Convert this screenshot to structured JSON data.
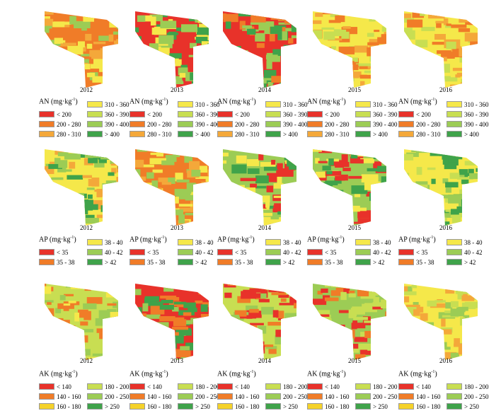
{
  "colors": {
    "red": "#e8322a",
    "orange": "#f07c28",
    "light_orange": "#f4a83a",
    "yellow": "#f5e84a",
    "yellow_green": "#c8de52",
    "light_green": "#9ccc55",
    "green": "#3fa34a",
    "background": "#ffffff"
  },
  "rows": [
    {
      "nutrient": "AN",
      "unit_text": "(mg·kg",
      "unit_exp": "-1",
      "unit_close": ")",
      "years": [
        "2012",
        "2013",
        "2014",
        "2015",
        "2016"
      ],
      "legend_items": [
        {
          "label": "< 200",
          "color": "#e8322a"
        },
        {
          "label": "200 - 280",
          "color": "#f07c28"
        },
        {
          "label": "280 - 310",
          "color": "#f4a83a"
        },
        {
          "label": "310 - 360",
          "color": "#f5e84a"
        },
        {
          "label": "360 - 390",
          "color": "#c8de52"
        },
        {
          "label": "390 - 400",
          "color": "#9ccc55"
        },
        {
          "label": "> 400",
          "color": "#3fa34a"
        }
      ],
      "map_palettes": [
        [
          "#f07c28",
          "#f5e84a",
          "#9ccc55",
          "#f4a83a"
        ],
        [
          "#e8322a",
          "#3fa34a",
          "#f5e84a",
          "#9ccc55"
        ],
        [
          "#e8322a",
          "#3fa34a",
          "#f07c28",
          "#9ccc55"
        ],
        [
          "#f5e84a",
          "#f07c28",
          "#f4a83a",
          "#c8de52"
        ],
        [
          "#f5e84a",
          "#f4a83a",
          "#c8de52",
          "#f07c28"
        ]
      ]
    },
    {
      "nutrient": "AP",
      "unit_text": "(mg·kg",
      "unit_exp": "-1",
      "unit_close": ")",
      "years": [
        "2012",
        "2013",
        "2014",
        "2015",
        "2016"
      ],
      "legend_items": [
        {
          "label": "< 35",
          "color": "#e8322a"
        },
        {
          "label": "35 - 38",
          "color": "#f07c28"
        },
        {
          "label": "38 - 40",
          "color": "#f5e84a"
        },
        {
          "label": "40 - 42",
          "color": "#9ccc55"
        },
        {
          "label": "> 42",
          "color": "#3fa34a"
        }
      ],
      "map_palettes": [
        [
          "#f5e84a",
          "#3fa34a",
          "#9ccc55",
          "#f4a83a"
        ],
        [
          "#f07c28",
          "#f5e84a",
          "#9ccc55",
          "#f4a83a"
        ],
        [
          "#9ccc55",
          "#e8322a",
          "#f5e84a",
          "#3fa34a"
        ],
        [
          "#9ccc55",
          "#e8322a",
          "#f5e84a",
          "#3fa34a"
        ],
        [
          "#f5e84a",
          "#9ccc55",
          "#c8de52",
          "#3fa34a"
        ]
      ]
    },
    {
      "nutrient": "AK",
      "unit_text": "(mg·kg",
      "unit_exp": "-1",
      "unit_close": ")",
      "years": [
        "2012",
        "2013",
        "2014",
        "2015",
        "2016"
      ],
      "legend_items": [
        {
          "label": "< 140",
          "color": "#e8322a"
        },
        {
          "label": "140 - 160",
          "color": "#f07c28"
        },
        {
          "label": "160 - 180",
          "color": "#f5d22a"
        },
        {
          "label": "180 - 200",
          "color": "#c8de52"
        },
        {
          "label": "200 - 250",
          "color": "#9ccc55"
        },
        {
          "label": "> 250",
          "color": "#3fa34a"
        }
      ],
      "map_palettes": [
        [
          "#c8de52",
          "#f07c28",
          "#9ccc55",
          "#f5e84a"
        ],
        [
          "#e8322a",
          "#9ccc55",
          "#f07c28",
          "#3fa34a"
        ],
        [
          "#c8de52",
          "#e8322a",
          "#9ccc55",
          "#f07c28"
        ],
        [
          "#9ccc55",
          "#e8322a",
          "#f07c28",
          "#c8de52"
        ],
        [
          "#f5e84a",
          "#c8de52",
          "#f4a83a",
          "#9ccc55"
        ]
      ]
    }
  ]
}
